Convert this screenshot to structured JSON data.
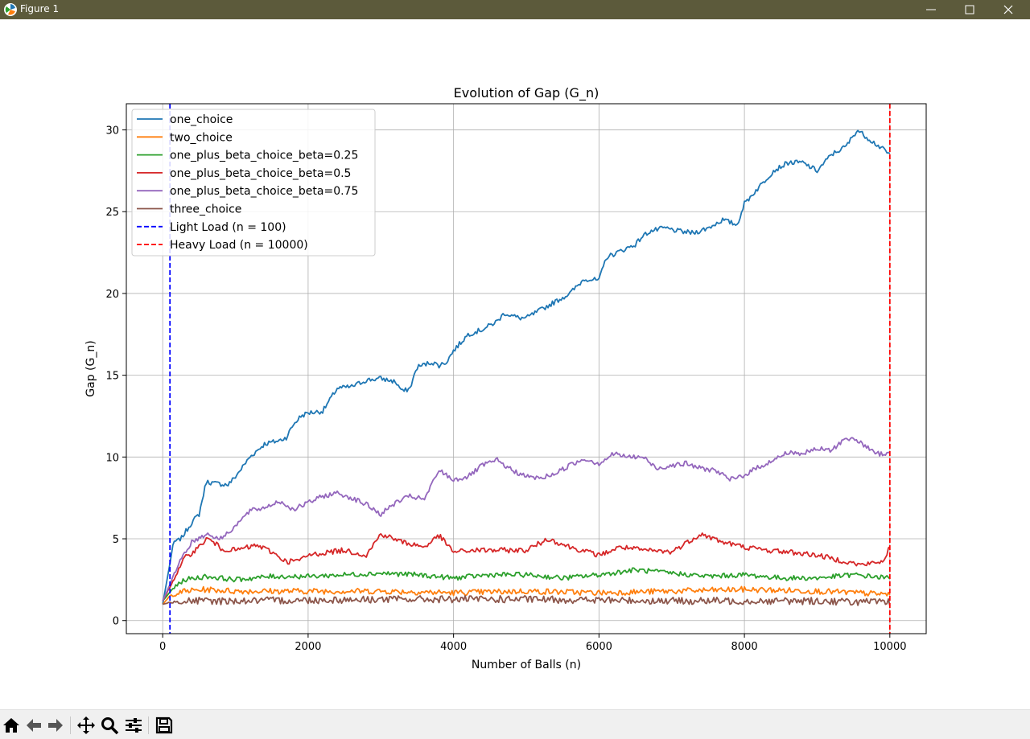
{
  "window": {
    "title": "Figure 1",
    "buttons": {
      "minimize": "minimize-icon",
      "maximize": "maximize-icon",
      "close": "close-icon"
    }
  },
  "toolbar": {
    "tools": [
      "home-icon",
      "back-arrow-icon",
      "forward-arrow-icon",
      "pan-icon",
      "zoom-icon",
      "configure-subplots-icon",
      "save-icon"
    ]
  },
  "chart_data": {
    "type": "line",
    "title": "Evolution of Gap (G_n)",
    "xlabel": "Number of Balls (n)",
    "ylabel": "Gap (G_n)",
    "xlim": [
      -500,
      10500
    ],
    "ylim": [
      -0.8,
      31.6
    ],
    "xticks": [
      0,
      2000,
      4000,
      6000,
      8000,
      10000
    ],
    "yticks": [
      0,
      5,
      10,
      15,
      20,
      25,
      30
    ],
    "grid": true,
    "legend_position": "upper-left",
    "series": [
      {
        "name": "one_choice",
        "color": "#1f77b4",
        "style": "solid",
        "noise": 0.15,
        "points": [
          [
            0,
            1
          ],
          [
            80,
            3
          ],
          [
            150,
            4.8
          ],
          [
            250,
            5
          ],
          [
            400,
            6
          ],
          [
            500,
            6.5
          ],
          [
            600,
            8.5
          ],
          [
            700,
            8.4
          ],
          [
            900,
            8.3
          ],
          [
            1000,
            8.8
          ],
          [
            1200,
            10
          ],
          [
            1400,
            10.8
          ],
          [
            1600,
            11
          ],
          [
            1700,
            11.2
          ],
          [
            1800,
            12
          ],
          [
            1900,
            12.5
          ],
          [
            2000,
            12.7
          ],
          [
            2200,
            12.8
          ],
          [
            2300,
            13.5
          ],
          [
            2400,
            14.2
          ],
          [
            2600,
            14.3
          ],
          [
            2800,
            14.7
          ],
          [
            3000,
            14.8
          ],
          [
            3200,
            14.6
          ],
          [
            3300,
            14
          ],
          [
            3400,
            14.2
          ],
          [
            3500,
            15.5
          ],
          [
            3700,
            15.8
          ],
          [
            3800,
            15.6
          ],
          [
            3900,
            15.8
          ],
          [
            4000,
            16.5
          ],
          [
            4200,
            17.5
          ],
          [
            4400,
            17.8
          ],
          [
            4600,
            18.3
          ],
          [
            4700,
            18.8
          ],
          [
            4900,
            18.5
          ],
          [
            5000,
            18.5
          ],
          [
            5200,
            19
          ],
          [
            5400,
            19.5
          ],
          [
            5600,
            20
          ],
          [
            5800,
            20.9
          ],
          [
            6000,
            20.8
          ],
          [
            6100,
            22.2
          ],
          [
            6300,
            22.6
          ],
          [
            6500,
            23
          ],
          [
            6600,
            23.5
          ],
          [
            6700,
            23.8
          ],
          [
            6900,
            24
          ],
          [
            7100,
            23.8
          ],
          [
            7300,
            23.7
          ],
          [
            7500,
            24
          ],
          [
            7700,
            24.5
          ],
          [
            7900,
            24.2
          ],
          [
            8000,
            25.5
          ],
          [
            8200,
            26.5
          ],
          [
            8400,
            27.5
          ],
          [
            8600,
            28
          ],
          [
            8800,
            28
          ],
          [
            9000,
            27.5
          ],
          [
            9200,
            28.5
          ],
          [
            9400,
            29
          ],
          [
            9550,
            30
          ],
          [
            9700,
            29.5
          ],
          [
            9850,
            29
          ],
          [
            10000,
            28.5
          ]
        ]
      },
      {
        "name": "two_choice",
        "color": "#ff7f0e",
        "style": "solid",
        "noise": 0.18,
        "points": [
          [
            0,
            1
          ],
          [
            100,
            1.5
          ],
          [
            300,
            1.8
          ],
          [
            600,
            1.9
          ],
          [
            1000,
            1.8
          ],
          [
            2000,
            1.8
          ],
          [
            3000,
            1.8
          ],
          [
            4000,
            1.7
          ],
          [
            5000,
            1.8
          ],
          [
            6000,
            1.7
          ],
          [
            7000,
            1.8
          ],
          [
            8000,
            1.9
          ],
          [
            9000,
            1.8
          ],
          [
            10000,
            1.6
          ]
        ]
      },
      {
        "name": "one_plus_beta_choice_beta=0.25",
        "color": "#2ca02c",
        "style": "solid",
        "noise": 0.15,
        "points": [
          [
            0,
            1.2
          ],
          [
            150,
            2
          ],
          [
            300,
            2.5
          ],
          [
            600,
            2.7
          ],
          [
            1000,
            2.5
          ],
          [
            1500,
            2.7
          ],
          [
            2000,
            2.7
          ],
          [
            2500,
            2.8
          ],
          [
            3000,
            2.9
          ],
          [
            3500,
            2.8
          ],
          [
            4000,
            2.6
          ],
          [
            4500,
            2.8
          ],
          [
            5000,
            2.8
          ],
          [
            5500,
            2.6
          ],
          [
            6000,
            2.8
          ],
          [
            6500,
            3.1
          ],
          [
            7000,
            2.9
          ],
          [
            7500,
            2.7
          ],
          [
            8000,
            2.8
          ],
          [
            8500,
            2.6
          ],
          [
            9000,
            2.6
          ],
          [
            9500,
            2.8
          ],
          [
            10000,
            2.6
          ]
        ]
      },
      {
        "name": "one_plus_beta_choice_beta=0.5",
        "color": "#d62728",
        "style": "solid",
        "noise": 0.16,
        "points": [
          [
            0,
            1.2
          ],
          [
            150,
            2.5
          ],
          [
            300,
            3.8
          ],
          [
            500,
            4.5
          ],
          [
            600,
            5
          ],
          [
            700,
            4.8
          ],
          [
            800,
            4.4
          ],
          [
            1000,
            4.3
          ],
          [
            1300,
            4.6
          ],
          [
            1500,
            4.2
          ],
          [
            1700,
            3.6
          ],
          [
            1900,
            3.7
          ],
          [
            2000,
            4
          ],
          [
            2300,
            4.2
          ],
          [
            2500,
            4.3
          ],
          [
            2800,
            4
          ],
          [
            3000,
            5.3
          ],
          [
            3300,
            4.8
          ],
          [
            3600,
            4.5
          ],
          [
            3800,
            5.2
          ],
          [
            4000,
            4.2
          ],
          [
            4300,
            4.3
          ],
          [
            4600,
            4.3
          ],
          [
            5000,
            4.3
          ],
          [
            5300,
            5
          ],
          [
            5600,
            4.5
          ],
          [
            6000,
            4
          ],
          [
            6300,
            4.5
          ],
          [
            6600,
            4.3
          ],
          [
            7000,
            4.2
          ],
          [
            7400,
            5.3
          ],
          [
            7700,
            4.8
          ],
          [
            8000,
            4.5
          ],
          [
            8300,
            4.3
          ],
          [
            8600,
            4.2
          ],
          [
            9000,
            4
          ],
          [
            9300,
            3.7
          ],
          [
            9600,
            3.4
          ],
          [
            9900,
            3.6
          ],
          [
            10000,
            4.5
          ]
        ]
      },
      {
        "name": "one_plus_beta_choice_beta=0.75",
        "color": "#9467bd",
        "style": "solid",
        "noise": 0.15,
        "points": [
          [
            0,
            1.2
          ],
          [
            100,
            2.2
          ],
          [
            250,
            3.8
          ],
          [
            400,
            4.8
          ],
          [
            600,
            5.3
          ],
          [
            800,
            5
          ],
          [
            1000,
            5.8
          ],
          [
            1200,
            6.7
          ],
          [
            1400,
            6.9
          ],
          [
            1600,
            7.3
          ],
          [
            1800,
            6.8
          ],
          [
            2000,
            7.2
          ],
          [
            2200,
            7.6
          ],
          [
            2400,
            7.8
          ],
          [
            2600,
            7.5
          ],
          [
            2800,
            7.1
          ],
          [
            3000,
            6.5
          ],
          [
            3200,
            7.2
          ],
          [
            3400,
            7.6
          ],
          [
            3600,
            7.4
          ],
          [
            3800,
            9.2
          ],
          [
            4000,
            8.6
          ],
          [
            4200,
            8.8
          ],
          [
            4400,
            9.5
          ],
          [
            4600,
            9.8
          ],
          [
            4800,
            9.2
          ],
          [
            5000,
            8.8
          ],
          [
            5200,
            8.7
          ],
          [
            5400,
            9
          ],
          [
            5600,
            9.5
          ],
          [
            5800,
            9.9
          ],
          [
            6000,
            9.6
          ],
          [
            6200,
            10.2
          ],
          [
            6400,
            10
          ],
          [
            6600,
            10
          ],
          [
            6800,
            9.3
          ],
          [
            7000,
            9.5
          ],
          [
            7200,
            9.6
          ],
          [
            7400,
            9.3
          ],
          [
            7600,
            9.2
          ],
          [
            7800,
            8.6
          ],
          [
            8000,
            8.9
          ],
          [
            8200,
            9.4
          ],
          [
            8400,
            9.8
          ],
          [
            8600,
            10.3
          ],
          [
            8800,
            10.2
          ],
          [
            9000,
            10.5
          ],
          [
            9200,
            10.4
          ],
          [
            9400,
            11.2
          ],
          [
            9600,
            10.9
          ],
          [
            9800,
            10.2
          ],
          [
            10000,
            10.2
          ]
        ]
      },
      {
        "name": "three_choice",
        "color": "#8c564b",
        "style": "solid",
        "noise": 0.22,
        "points": [
          [
            0,
            1
          ],
          [
            200,
            1.2
          ],
          [
            1000,
            1.2
          ],
          [
            3000,
            1.3
          ],
          [
            5000,
            1.3
          ],
          [
            7000,
            1.2
          ],
          [
            9000,
            1.2
          ],
          [
            10000,
            1.1
          ]
        ]
      },
      {
        "name": "Light Load (n = 100)",
        "color": "#0000ff",
        "style": "dashed",
        "vline": 100
      },
      {
        "name": "Heavy Load (n = 10000)",
        "color": "#ff0000",
        "style": "dashed",
        "vline": 10000
      }
    ]
  }
}
